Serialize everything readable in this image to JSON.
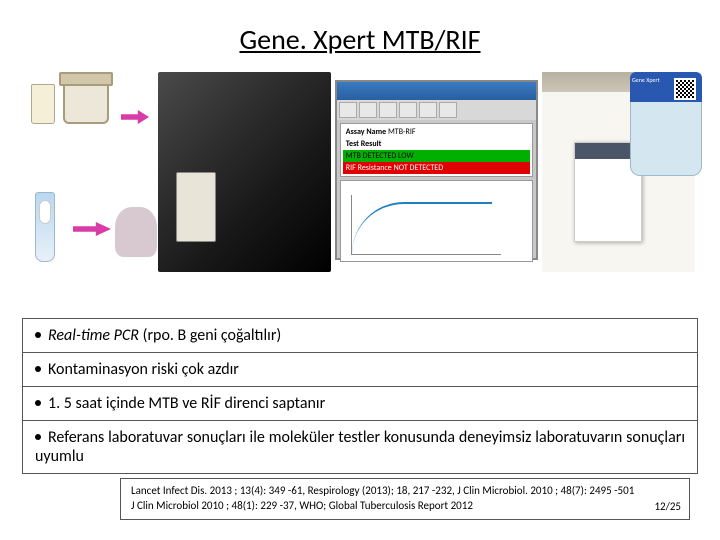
{
  "title": "Gene. Xpert MTB/RIF",
  "screen": {
    "assay_label": "Assay Name",
    "assay_value": "MTB-RIF",
    "test_result_label": "Test Result",
    "result_line1": "MTB DETECTED LOW",
    "result_line2": "RIF Resistance NOT DETECTED"
  },
  "bin_brand": "Gene Xpert",
  "bullets": {
    "b1_prefix": "Real-time PCR ",
    "b1_suffix": "(rpo. B geni çoğaltılır)",
    "b2": "Kontaminasyon riski çok azdır",
    "b3": "1. 5 saat içinde MTB ve RİF direnci saptanır",
    "b4": "Referans laboratuvar sonuçları ile moleküler testler konusunda deneyimsiz laboratuvarın sonuçları uyumlu"
  },
  "citation": {
    "line1": "Lancet Infect Dis. 2013 ; 13(4): 349 -61, Respirology (2013); 18, 217 -232, J Clin Microbiol. 2010 ; 48(7): 2495 -501",
    "line2": "J Clin Microbiol 2010 ; 48(1): 229 -37, WHO; Global Tuberculosis Report 2012"
  },
  "page": "12/25",
  "colors": {
    "arrow": "#d93ba8",
    "result_green": "#00b000",
    "result_red": "#e00000",
    "bin_blue": "#2858b0"
  }
}
